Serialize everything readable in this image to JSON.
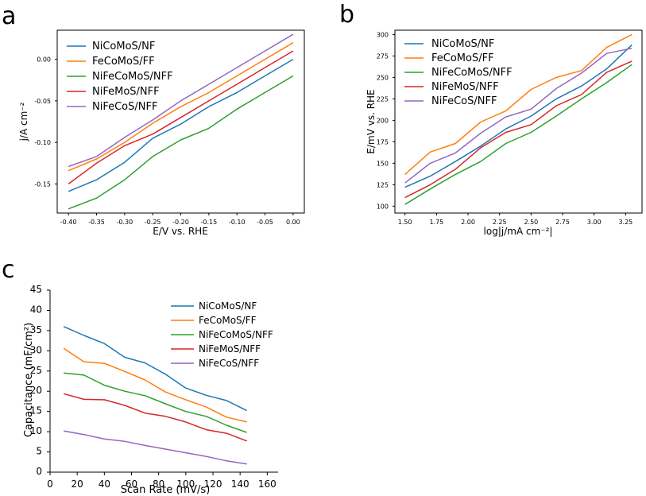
{
  "chart_data": [
    {
      "panel": "a",
      "type": "line",
      "xlabel": "E/V vs. RHE",
      "ylabel": "j/A cm⁻²",
      "xlim": [
        -0.42,
        0.02
      ],
      "ylim": [
        -0.185,
        0.035
      ],
      "xticks": [
        -0.4,
        -0.35,
        -0.3,
        -0.25,
        -0.2,
        -0.15,
        -0.1,
        -0.05,
        0.0
      ],
      "xtick_labels": [
        "-0.40",
        "-0.35",
        "-0.30",
        "-0.25",
        "-0.20",
        "-0.15",
        "-0.10",
        "-0.05",
        "0.00"
      ],
      "yticks": [
        -0.15,
        -0.1,
        -0.05,
        0.0
      ],
      "ytick_labels": [
        "-0.15",
        "-0.10",
        "-0.05",
        "0.00"
      ],
      "legend_position": "upper-left",
      "x": [
        -0.4,
        -0.35,
        -0.3,
        -0.25,
        -0.2,
        -0.15,
        -0.1,
        -0.05,
        0.0
      ],
      "series": [
        {
          "name": "NiCoMoS/NF",
          "color": "#1f77b4",
          "values": [
            -0.159,
            -0.145,
            -0.124,
            -0.095,
            -0.078,
            -0.057,
            -0.04,
            -0.02,
            0.0
          ]
        },
        {
          "name": "FeCoMoS/FF",
          "color": "#ff7f0e",
          "values": [
            -0.134,
            -0.12,
            -0.1,
            -0.077,
            -0.057,
            -0.04,
            -0.02,
            0.0,
            0.02
          ]
        },
        {
          "name": "NiFeCoMoS/NFF",
          "color": "#2ca02c",
          "values": [
            -0.18,
            -0.167,
            -0.145,
            -0.117,
            -0.097,
            -0.083,
            -0.06,
            -0.04,
            -0.02
          ]
        },
        {
          "name": "NiFeMoS/NFF",
          "color": "#d62728",
          "values": [
            -0.15,
            -0.125,
            -0.104,
            -0.09,
            -0.07,
            -0.05,
            -0.03,
            -0.01,
            0.01
          ]
        },
        {
          "name": "NiFeCoS/NFF",
          "color": "#9467bd",
          "values": [
            -0.129,
            -0.117,
            -0.094,
            -0.073,
            -0.05,
            -0.03,
            -0.01,
            0.01,
            0.03
          ]
        }
      ]
    },
    {
      "panel": "b",
      "type": "line",
      "xlabel": "log|j/mA cm⁻²|",
      "ylabel": "E/mV vs. RHE",
      "xlim": [
        1.42,
        3.38
      ],
      "ylim": [
        92,
        305
      ],
      "xticks": [
        1.5,
        1.75,
        2.0,
        2.25,
        2.5,
        2.75,
        3.0,
        3.25
      ],
      "xtick_labels": [
        "1.50",
        "1.75",
        "2.00",
        "2.25",
        "2.50",
        "2.75",
        "3.00",
        "3.25"
      ],
      "yticks": [
        100,
        125,
        150,
        175,
        200,
        225,
        250,
        275,
        300
      ],
      "ytick_labels": [
        "100",
        "125",
        "150",
        "175",
        "200",
        "225",
        "250",
        "275",
        "300"
      ],
      "legend_position": "upper-left",
      "x": [
        1.5,
        1.7,
        1.9,
        2.1,
        2.3,
        2.5,
        2.7,
        2.9,
        3.1,
        3.3
      ],
      "series": [
        {
          "name": "NiCoMoS/NF",
          "color": "#1f77b4",
          "values": [
            122,
            135,
            152,
            170,
            190,
            205,
            225,
            240,
            260,
            288
          ]
        },
        {
          "name": "FeCoMoS/FF",
          "color": "#ff7f0e",
          "values": [
            137,
            163,
            173,
            198,
            211,
            236,
            250,
            258,
            285,
            300
          ]
        },
        {
          "name": "NiFeCoMoS/NFF",
          "color": "#2ca02c",
          "values": [
            102,
            120,
            137,
            152,
            173,
            186,
            205,
            225,
            244,
            265
          ]
        },
        {
          "name": "NiFeMoS/NFF",
          "color": "#d62728",
          "values": [
            110,
            125,
            143,
            168,
            186,
            195,
            217,
            230,
            256,
            269
          ]
        },
        {
          "name": "NiFeCoS/NFF",
          "color": "#9467bd",
          "values": [
            127,
            150,
            162,
            185,
            204,
            213,
            237,
            255,
            278,
            284
          ]
        }
      ]
    },
    {
      "panel": "c",
      "type": "line",
      "xlabel": "Scan Rate (mV/s)",
      "ylabel": "Capacitance (mF/cm²)",
      "xlim": [
        0,
        168
      ],
      "ylim": [
        0,
        45
      ],
      "xticks": [
        0,
        20,
        40,
        60,
        80,
        100,
        120,
        140,
        160
      ],
      "xtick_labels": [
        "0",
        "20",
        "40",
        "60",
        "80",
        "100",
        "120",
        "140",
        "160"
      ],
      "yticks": [
        0,
        5,
        10,
        15,
        20,
        25,
        30,
        35,
        40,
        45
      ],
      "ytick_labels": [
        "0",
        "5",
        "10",
        "15",
        "20",
        "25",
        "30",
        "35",
        "40",
        "45"
      ],
      "legend_position": "upper-right",
      "x": [
        10,
        25,
        40,
        55,
        70,
        85,
        100,
        115,
        130,
        145
      ],
      "series": [
        {
          "name": "NiCoMoS/NF",
          "color": "#1f77b4",
          "values": [
            36.0,
            33.8,
            31.8,
            28.4,
            27.0,
            24.2,
            20.8,
            19.0,
            17.7,
            15.2
          ]
        },
        {
          "name": "FeCoMoS/FF",
          "color": "#ff7f0e",
          "values": [
            30.6,
            27.3,
            26.9,
            24.9,
            22.8,
            19.8,
            17.9,
            16.1,
            13.6,
            12.4
          ]
        },
        {
          "name": "NiFeCoMoS/NFF",
          "color": "#2ca02c",
          "values": [
            24.5,
            24.0,
            21.5,
            20.0,
            18.9,
            16.9,
            15.0,
            13.8,
            11.6,
            9.8
          ]
        },
        {
          "name": "NiFeMoS/NFF",
          "color": "#d62728",
          "values": [
            19.4,
            18.0,
            17.9,
            16.5,
            14.6,
            13.8,
            12.4,
            10.5,
            9.6,
            7.7
          ]
        },
        {
          "name": "NiFeCoS/NFF",
          "color": "#9467bd",
          "values": [
            10.2,
            9.3,
            8.2,
            7.6,
            6.6,
            5.7,
            4.8,
            3.9,
            2.8,
            2.0
          ]
        }
      ]
    }
  ]
}
